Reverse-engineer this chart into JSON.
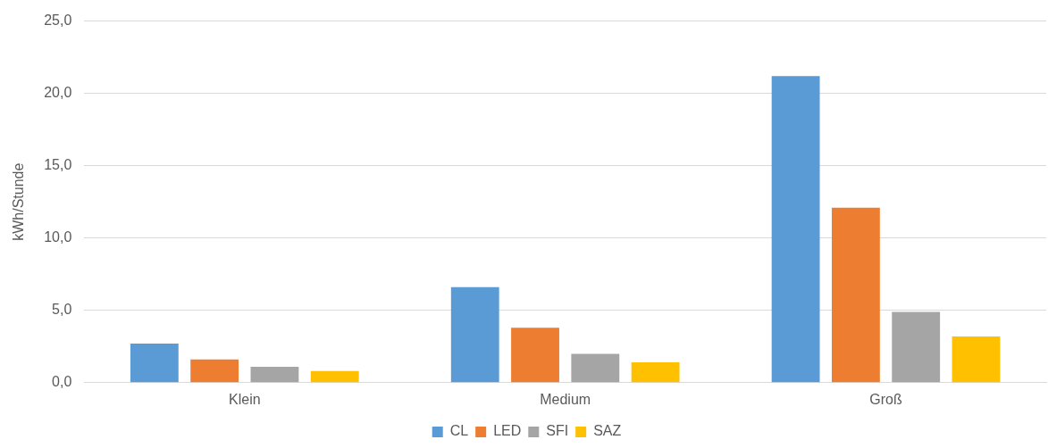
{
  "chart_data": {
    "type": "bar",
    "ylabel": "kWh/Stunde",
    "categories": [
      "Klein",
      "Medium",
      "Groß"
    ],
    "series": [
      {
        "name": "CL",
        "color": "#5b9bd5",
        "values": [
          2.7,
          6.6,
          21.2
        ]
      },
      {
        "name": "LED",
        "color": "#ed7d31",
        "values": [
          1.6,
          3.8,
          12.1
        ]
      },
      {
        "name": "SFI",
        "color": "#a5a5a5",
        "values": [
          1.1,
          2.0,
          4.9
        ]
      },
      {
        "name": "SAZ",
        "color": "#ffc000",
        "values": [
          0.8,
          1.4,
          3.2
        ]
      }
    ],
    "ylim": [
      0,
      25
    ],
    "yticks": [
      {
        "value": 0,
        "label": "0,0"
      },
      {
        "value": 5,
        "label": "5,0"
      },
      {
        "value": 10,
        "label": "10,0"
      },
      {
        "value": 15,
        "label": "15,0"
      },
      {
        "value": 20,
        "label": "20,0"
      },
      {
        "value": 25,
        "label": "25,0"
      }
    ],
    "grid": "y",
    "legend": "bottom"
  }
}
